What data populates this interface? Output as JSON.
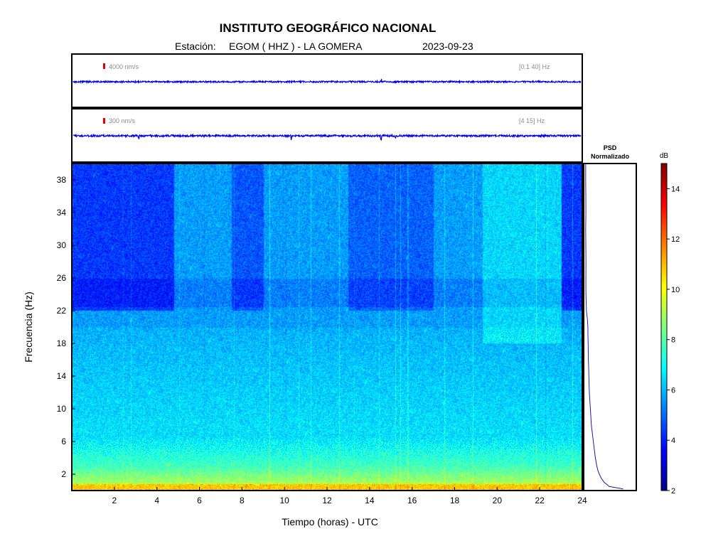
{
  "header": {
    "title": "INSTITUTO GEOGRÁFICO NACIONAL",
    "station_label": "Estación:",
    "station": "EGOM ( HHZ ) - LA GOMERA",
    "date": "2023-09-23"
  },
  "traces": [
    {
      "scale_label": "4000 nm/s",
      "band_label": "[0.1 40] Hz",
      "color": "#0000dd"
    },
    {
      "scale_label": "300 nm/s",
      "band_label": "[4 15] Hz",
      "color": "#0000dd"
    }
  ],
  "psd_panel": {
    "title_line1": "PSD",
    "title_line2": "Normalizado"
  },
  "colors": {
    "scale_mark": "#e00000",
    "psd_line": "#1a1aa0",
    "frame": "#000000"
  },
  "chart_data": {
    "type": "heatmap",
    "xlabel": "Tiempo (horas) - UTC",
    "ylabel": "Frecuencia  (Hz)",
    "xlim": [
      0,
      24
    ],
    "ylim": [
      0,
      40
    ],
    "x_ticks": [
      2,
      4,
      6,
      8,
      10,
      12,
      14,
      16,
      18,
      20,
      22,
      24
    ],
    "y_ticks": [
      2,
      6,
      10,
      14,
      18,
      22,
      26,
      30,
      34,
      38
    ],
    "colorbar": {
      "label": "dB",
      "range": [
        2,
        15
      ],
      "ticks": [
        2,
        4,
        6,
        8,
        10,
        12,
        14
      ],
      "colormap": "jet"
    },
    "psd_profile": {
      "frequency_hz": [
        0.2,
        0.5,
        1,
        1.5,
        2,
        2.5,
        3,
        4,
        5,
        6,
        7,
        8,
        9,
        10,
        11,
        12,
        13,
        14,
        15,
        16,
        17,
        18,
        19,
        20,
        21,
        22,
        23,
        24,
        25,
        26,
        28,
        30,
        32,
        34,
        36,
        38,
        40
      ],
      "normalized": [
        0.78,
        0.5,
        0.4,
        0.34,
        0.3,
        0.27,
        0.25,
        0.22,
        0.2,
        0.18,
        0.16,
        0.14,
        0.13,
        0.12,
        0.11,
        0.1,
        0.095,
        0.09,
        0.085,
        0.08,
        0.078,
        0.075,
        0.072,
        0.07,
        0.06,
        0.04,
        0.035,
        0.032,
        0.03,
        0.03,
        0.032,
        0.028,
        0.025,
        0.03,
        0.028,
        0.025,
        0.025
      ]
    }
  }
}
